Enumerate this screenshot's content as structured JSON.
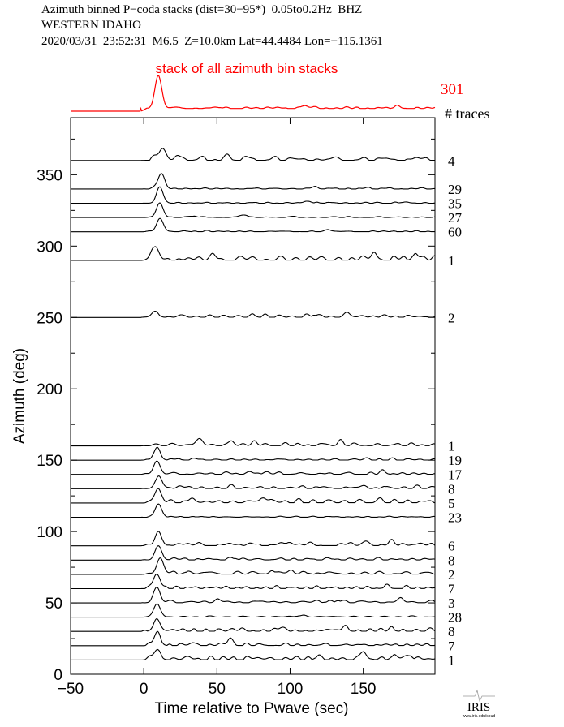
{
  "header": {
    "line1": "Azimuth binned P−coda stacks (dist=30−95*)  0.05to0.2Hz  BHZ",
    "line2": "WESTERN IDAHO",
    "line3": "2020/03/31  23:52:31  M6.5  Z=10.0km Lat=44.4484 Lon=−115.1361"
  },
  "logo": {
    "text": "IRIS",
    "subtext": "www.iris.edu/spud"
  },
  "colors": {
    "stack": "#ff0000",
    "trace": "#000000",
    "axis": "#000000"
  },
  "chart_data": {
    "type": "line",
    "title": "Azimuth binned P-coda stacks",
    "xlabel": "Time relative to Pwave (sec)",
    "ylabel": "Azimuth (deg)",
    "xlim": [
      -50,
      199
    ],
    "ylim": [
      0,
      390
    ],
    "xticks": [
      -50,
      0,
      50,
      100,
      150
    ],
    "xtick_labels": [
      "−50",
      "0",
      "50",
      "100",
      "150"
    ],
    "yticks": [
      0,
      50,
      100,
      150,
      200,
      250,
      300,
      350
    ],
    "ytick_labels": [
      "0",
      "50",
      "100",
      "150",
      "200",
      "250",
      "300",
      "350"
    ],
    "count_header": "# traces",
    "stack": {
      "label": "stack of all azimuth bin stacks",
      "n_traces": "301",
      "peak_time": 10,
      "peak_amp": 1.0,
      "noise": 0.08
    },
    "traces": [
      {
        "azimuth": 360,
        "n_traces": "4",
        "peak_time": 13,
        "peak_amp": 9,
        "noise": 3.0
      },
      {
        "azimuth": 340,
        "n_traces": "29",
        "peak_time": 12,
        "peak_amp": 12,
        "noise": 1.0
      },
      {
        "azimuth": 330,
        "n_traces": "35",
        "peak_time": 11,
        "peak_amp": 12,
        "noise": 0.8
      },
      {
        "azimuth": 320,
        "n_traces": "27",
        "peak_time": 11,
        "peak_amp": 11,
        "noise": 0.8
      },
      {
        "azimuth": 310,
        "n_traces": "60",
        "peak_time": 11,
        "peak_amp": 10,
        "noise": 0.8
      },
      {
        "azimuth": 290,
        "n_traces": "1",
        "peak_time": 7,
        "peak_amp": 10,
        "noise": 3.5
      },
      {
        "azimuth": 250,
        "n_traces": "2",
        "peak_time": 8,
        "peak_amp": 3,
        "noise": 2.5
      },
      {
        "azimuth": 160,
        "n_traces": "1",
        "peak_time": 38,
        "peak_amp": 5,
        "noise": 2.5
      },
      {
        "azimuth": 150,
        "n_traces": "19",
        "peak_time": 9,
        "peak_amp": 9,
        "noise": 1.2
      },
      {
        "azimuth": 140,
        "n_traces": "17",
        "peak_time": 9,
        "peak_amp": 10,
        "noise": 1.8
      },
      {
        "azimuth": 130,
        "n_traces": "8",
        "peak_time": 10,
        "peak_amp": 9,
        "noise": 2.2
      },
      {
        "azimuth": 120,
        "n_traces": "5",
        "peak_time": 10,
        "peak_amp": 10,
        "noise": 3.0
      },
      {
        "azimuth": 110,
        "n_traces": "23",
        "peak_time": 10,
        "peak_amp": 10,
        "noise": 0.8
      },
      {
        "azimuth": 90,
        "n_traces": "6",
        "peak_time": 10,
        "peak_amp": 10,
        "noise": 3.0
      },
      {
        "azimuth": 80,
        "n_traces": "8",
        "peak_time": 10,
        "peak_amp": 10,
        "noise": 2.0
      },
      {
        "azimuth": 70,
        "n_traces": "2",
        "peak_time": 11,
        "peak_amp": 11,
        "noise": 2.5
      },
      {
        "azimuth": 60,
        "n_traces": "7",
        "peak_time": 9,
        "peak_amp": 11,
        "noise": 2.0
      },
      {
        "azimuth": 50,
        "n_traces": "3",
        "peak_time": 9,
        "peak_amp": 11,
        "noise": 2.5
      },
      {
        "azimuth": 40,
        "n_traces": "28",
        "peak_time": 9,
        "peak_amp": 10,
        "noise": 1.0
      },
      {
        "azimuth": 30,
        "n_traces": "8",
        "peak_time": 9,
        "peak_amp": 9,
        "noise": 2.5
      },
      {
        "azimuth": 20,
        "n_traces": "7",
        "peak_time": 9,
        "peak_amp": 9,
        "noise": 2.0
      },
      {
        "azimuth": 10,
        "n_traces": "1",
        "peak_time": 9,
        "peak_amp": 7,
        "noise": 3.5
      }
    ]
  }
}
